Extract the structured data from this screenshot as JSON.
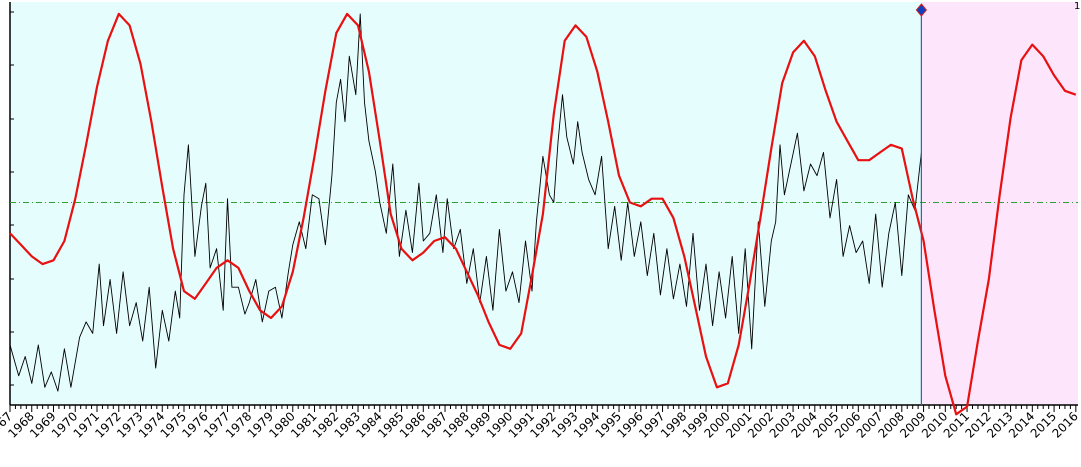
{
  "chart_data": {
    "type": "line",
    "title": "",
    "xlabel": "",
    "ylabel": "",
    "xlim": [
      1967,
      2016.1
    ],
    "ylim": [
      0,
      100
    ],
    "grid": false,
    "legend": "none",
    "tick_labels": [
      "1967",
      "1968",
      "1969",
      "1970",
      "1971",
      "1972",
      "1973",
      "1974",
      "1975",
      "1976",
      "1977",
      "1978",
      "1979",
      "1980",
      "1981",
      "1982",
      "1983",
      "1984",
      "1985",
      "1986",
      "1987",
      "1988",
      "1989",
      "1990",
      "1991",
      "1992",
      "1993",
      "1994",
      "1995",
      "1996",
      "1997",
      "1998",
      "1999",
      "2000",
      "2001",
      "2002",
      "2003",
      "2004",
      "2005",
      "2006",
      "2007",
      "2008",
      "2009",
      "2010",
      "2011",
      "2012",
      "2013",
      "2014",
      "2015",
      "2016"
    ],
    "corner_marker_text": "1",
    "divider_x": 2008.9,
    "reference_level": 50,
    "regions": [
      {
        "from": 1967,
        "to": 2008.9,
        "color": "#e6fdfd"
      },
      {
        "from": 2008.9,
        "to": 2016.1,
        "color": "#fde6fb"
      }
    ],
    "colors": {
      "series_1": "#000000",
      "series_2": "#e81010",
      "reference": "#30a030",
      "divider": "#2868a8",
      "marker": "#1040c0"
    },
    "series": [
      {
        "x": [
          1967.0,
          1967.4,
          1967.7,
          1968.0,
          1968.3,
          1968.6,
          1968.9,
          1969.2,
          1969.5,
          1969.8,
          1970.2,
          1970.5,
          1970.8,
          1971.1,
          1971.3,
          1971.6,
          1971.9,
          1972.2,
          1972.5,
          1972.8,
          1973.1,
          1973.4,
          1973.7,
          1974.0,
          1974.3,
          1974.6,
          1974.8,
          1975.0,
          1975.2,
          1975.5,
          1975.8,
          1976.0,
          1976.2,
          1976.5,
          1976.8,
          1977.0,
          1977.2,
          1977.5,
          1977.8,
          1978.0,
          1978.3,
          1978.6,
          1978.9,
          1979.2,
          1979.5,
          1979.8,
          1980.0,
          1980.3,
          1980.6,
          1980.9,
          1981.2,
          1981.5,
          1981.8,
          1982.0,
          1982.2,
          1982.4,
          1982.6,
          1982.9,
          1983.1,
          1983.3,
          1983.5,
          1983.8,
          1984.0,
          1984.3,
          1984.6,
          1984.9,
          1985.2,
          1985.5,
          1985.8,
          1986.0,
          1986.3,
          1986.6,
          1986.9,
          1987.1,
          1987.4,
          1987.7,
          1988.0,
          1988.3,
          1988.6,
          1988.9,
          1989.2,
          1989.5,
          1989.8,
          1990.1,
          1990.4,
          1990.7,
          1991.0,
          1991.2,
          1991.5,
          1991.8,
          1992.0,
          1992.2,
          1992.4,
          1992.6,
          1992.9,
          1993.1,
          1993.3,
          1993.6,
          1993.9,
          1994.2,
          1994.5,
          1994.8,
          1995.1,
          1995.4,
          1995.7,
          1996.0,
          1996.3,
          1996.6,
          1996.9,
          1997.2,
          1997.5,
          1997.8,
          1998.1,
          1998.4,
          1998.7,
          1999.0,
          1999.3,
          1999.6,
          1999.9,
          2000.2,
          2000.5,
          2000.8,
          2001.1,
          2001.4,
          2001.7,
          2002.0,
          2002.2,
          2002.4,
          2002.6,
          2002.9,
          2003.2,
          2003.5,
          2003.8,
          2004.1,
          2004.4,
          2004.7,
          2005.0,
          2005.3,
          2005.6,
          2005.9,
          2006.2,
          2006.5,
          2006.8,
          2007.1,
          2007.4,
          2007.7,
          2008.0,
          2008.3,
          2008.6,
          2008.9
        ],
        "values": [
          13,
          5,
          10,
          3,
          13,
          2,
          6,
          1,
          12,
          2,
          15,
          19,
          16,
          34,
          18,
          30,
          16,
          32,
          18,
          24,
          14,
          28,
          7,
          22,
          14,
          27,
          20,
          52,
          65,
          36,
          49,
          55,
          33,
          38,
          22,
          51,
          28,
          28,
          21,
          24,
          30,
          19,
          27,
          28,
          20,
          32,
          39,
          45,
          38,
          52,
          51,
          39,
          57,
          76,
          82,
          71,
          88,
          78,
          99,
          76,
          66,
          58,
          50,
          42,
          60,
          36,
          48,
          37,
          55,
          40,
          42,
          52,
          37,
          51,
          38,
          43,
          29,
          38,
          24,
          36,
          22,
          43,
          27,
          32,
          24,
          40,
          27,
          45,
          62,
          52,
          50,
          66,
          78,
          67,
          60,
          71,
          63,
          56,
          52,
          62,
          38,
          49,
          35,
          50,
          36,
          45,
          31,
          42,
          26,
          38,
          25,
          34,
          23,
          42,
          22,
          34,
          18,
          32,
          20,
          36,
          16,
          38,
          12,
          45,
          23,
          40,
          45,
          65,
          52,
          60,
          68,
          53,
          60,
          57,
          63,
          46,
          56,
          36,
          44,
          37,
          40,
          29,
          47,
          28,
          42,
          50,
          31,
          52,
          48,
          63
        ]
      },
      {
        "x": [
          1967.0,
          1967.5,
          1968.0,
          1968.5,
          1969.0,
          1969.5,
          1970.0,
          1970.5,
          1971.0,
          1971.5,
          1972.0,
          1972.5,
          1973.0,
          1973.5,
          1974.0,
          1974.5,
          1975.0,
          1975.5,
          1976.0,
          1976.5,
          1977.0,
          1977.5,
          1978.0,
          1978.5,
          1979.0,
          1979.5,
          1980.0,
          1980.5,
          1981.0,
          1981.5,
          1982.0,
          1982.5,
          1983.0,
          1983.5,
          1984.0,
          1984.5,
          1985.0,
          1985.5,
          1986.0,
          1986.5,
          1987.0,
          1987.5,
          1988.0,
          1988.5,
          1989.0,
          1989.5,
          1990.0,
          1990.5,
          1991.0,
          1991.5,
          1992.0,
          1992.5,
          1993.0,
          1993.5,
          1994.0,
          1994.5,
          1995.0,
          1995.5,
          1996.0,
          1996.5,
          1997.0,
          1997.5,
          1998.0,
          1998.5,
          1999.0,
          1999.5,
          2000.0,
          2000.5,
          2001.0,
          2001.5,
          2002.0,
          2002.5,
          2003.0,
          2003.5,
          2004.0,
          2004.5,
          2005.0,
          2005.5,
          2006.0,
          2006.5,
          2007.0,
          2007.5,
          2008.0,
          2008.5,
          2009.0,
          2009.5,
          2010.0,
          2010.5,
          2011.0,
          2011.5,
          2012.0,
          2012.5,
          2013.0,
          2013.5,
          2014.0,
          2014.5,
          2015.0,
          2015.5,
          2016.0
        ],
        "values": [
          42,
          39,
          36,
          34,
          35,
          40,
          51,
          65,
          80,
          92,
          99,
          96,
          86,
          71,
          54,
          38,
          27,
          25,
          29,
          33,
          35,
          33,
          27,
          22,
          20,
          23,
          32,
          46,
          62,
          79,
          94,
          99,
          96,
          84,
          66,
          47,
          38,
          35,
          37,
          40,
          41,
          38,
          32,
          26,
          19,
          13,
          12,
          16,
          31,
          47,
          73,
          92,
          96,
          93,
          84,
          71,
          57,
          50,
          49,
          51,
          51,
          46,
          36,
          23,
          10,
          2,
          3,
          13,
          29,
          46,
          64,
          81,
          89,
          92,
          88,
          79,
          71,
          66,
          61,
          61,
          63,
          65,
          64,
          51,
          40,
          22,
          5,
          -5,
          -3,
          14,
          30,
          52,
          72,
          87,
          91,
          88,
          83,
          79,
          78
        ]
      }
    ]
  }
}
